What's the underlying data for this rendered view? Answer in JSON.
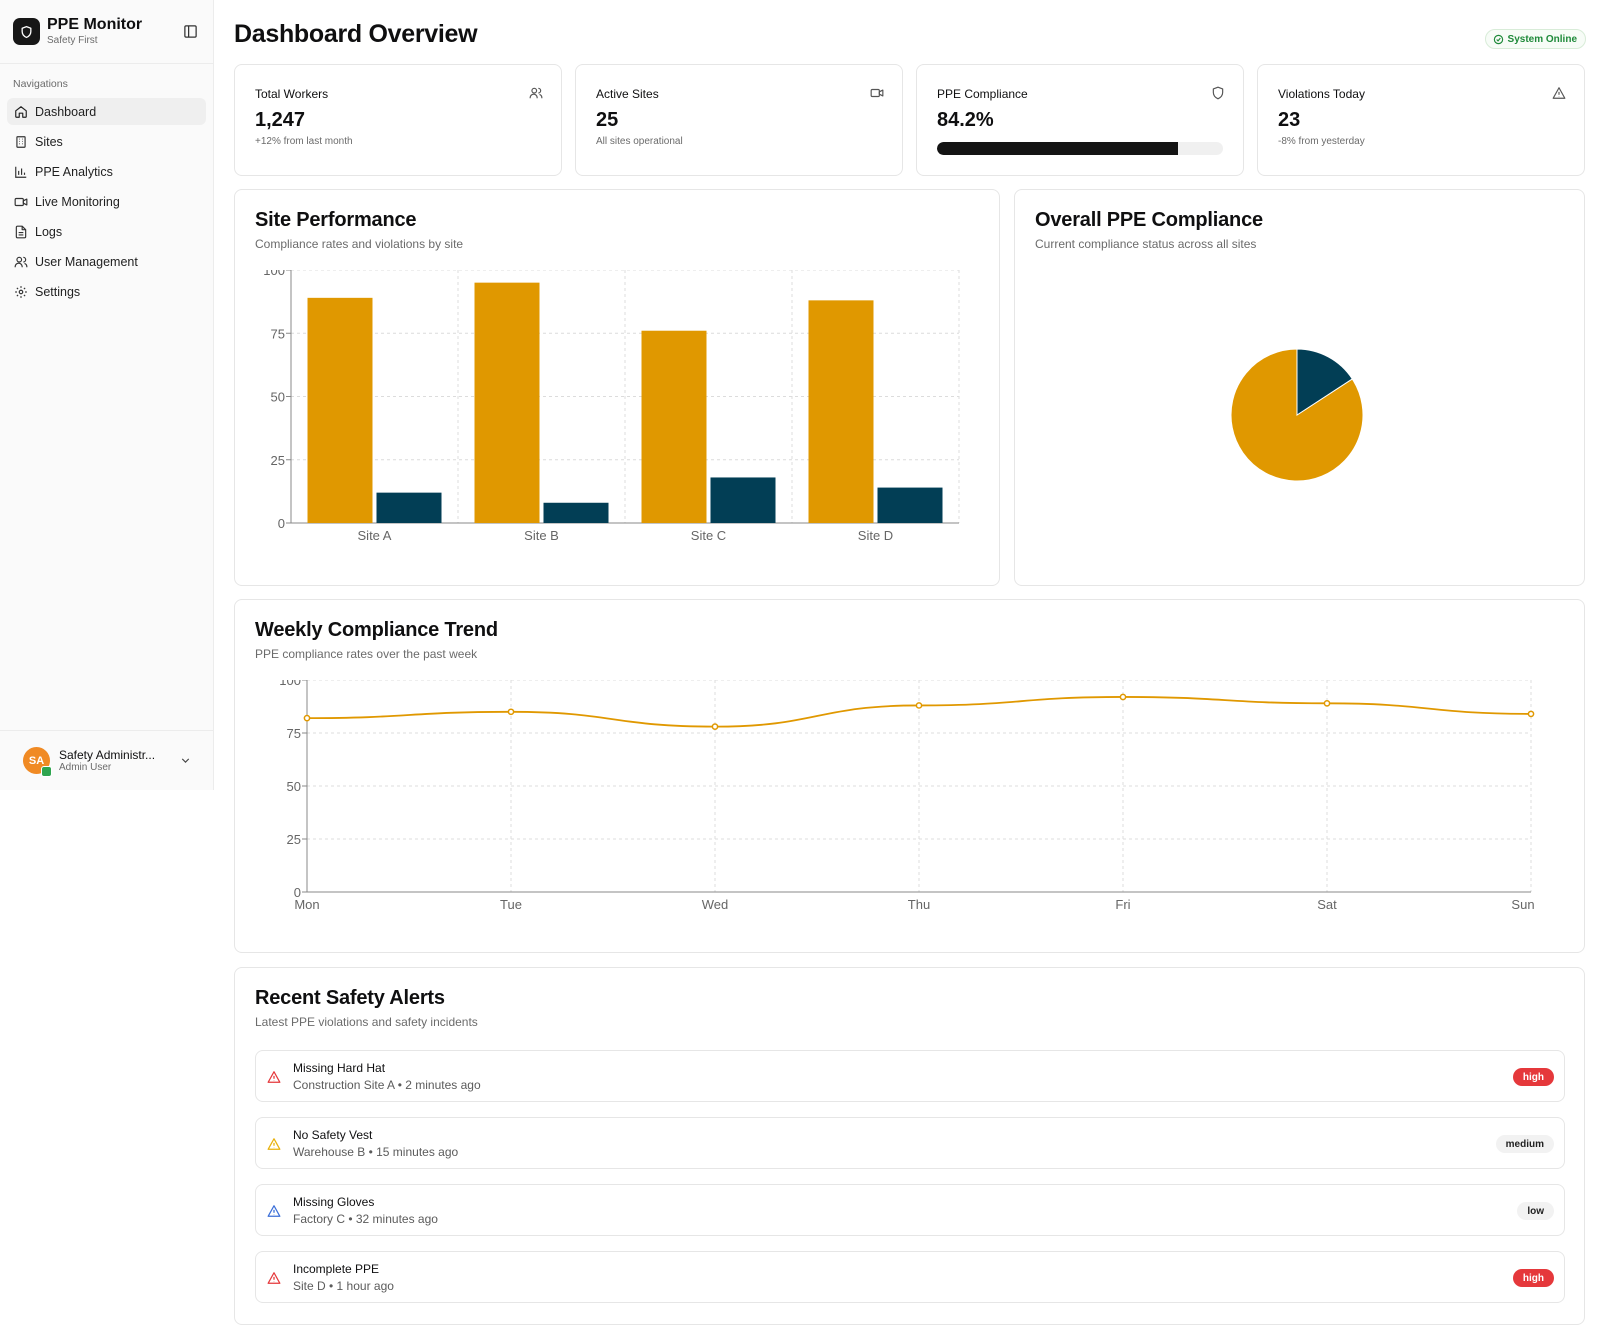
{
  "sidebar": {
    "brand_title": "PPE Monitor",
    "brand_subtitle": "Safety First",
    "nav_heading": "Navigations",
    "items": [
      {
        "label": "Dashboard",
        "icon": "home-icon"
      },
      {
        "label": "Sites",
        "icon": "building-icon"
      },
      {
        "label": "PPE Analytics",
        "icon": "bar-chart-icon"
      },
      {
        "label": "Live Monitoring",
        "icon": "video-icon"
      },
      {
        "label": "Logs",
        "icon": "file-text-icon"
      },
      {
        "label": "User Management",
        "icon": "users-icon"
      },
      {
        "label": "Settings",
        "icon": "gear-icon"
      }
    ],
    "user": {
      "initials": "SA",
      "name": "Safety Administr...",
      "role": "Admin User"
    }
  },
  "header": {
    "title": "Dashboard Overview",
    "status": "System Online"
  },
  "stats": [
    {
      "title": "Total Workers",
      "value": "1,247",
      "note": "+12% from last month",
      "icon": "users-icon"
    },
    {
      "title": "Active Sites",
      "value": "25",
      "note": "All sites operational",
      "icon": "video-icon"
    },
    {
      "title": "PPE Compliance",
      "value": "84.2%",
      "progress": 84.2,
      "icon": "shield-icon"
    },
    {
      "title": "Violations Today",
      "value": "23",
      "note": "-8% from yesterday",
      "icon": "warning-icon"
    }
  ],
  "site_performance": {
    "title": "Site Performance",
    "subtitle": "Compliance rates and violations by site"
  },
  "overall_compliance": {
    "title": "Overall PPE Compliance",
    "subtitle": "Current compliance status across all sites"
  },
  "weekly_trend": {
    "title": "Weekly Compliance Trend",
    "subtitle": "PPE compliance rates over the past week"
  },
  "alerts": {
    "title": "Recent Safety Alerts",
    "subtitle": "Latest PPE violations and safety incidents",
    "items": [
      {
        "title": "Missing Hard Hat",
        "meta": "Construction Site A • 2 minutes ago",
        "severity": "high",
        "color": "#e5383b"
      },
      {
        "title": "No Safety Vest",
        "meta": "Warehouse B • 15 minutes ago",
        "severity": "medium",
        "color": "#e8b10c"
      },
      {
        "title": "Missing Gloves",
        "meta": "Factory C • 32 minutes ago",
        "severity": "low",
        "color": "#3b6fd8"
      },
      {
        "title": "Incomplete PPE",
        "meta": "Site D • 1 hour ago",
        "severity": "high",
        "color": "#e5383b"
      }
    ]
  },
  "colors": {
    "accent": "#e09800",
    "dark": "#023e55",
    "danger": "#e5383b",
    "success": "#1f8a3a"
  },
  "chart_data": [
    {
      "type": "bar",
      "categories": [
        "Site A",
        "Site B",
        "Site C",
        "Site D"
      ],
      "series": [
        {
          "values": [
            89,
            95,
            76,
            88
          ]
        },
        {
          "values": [
            12,
            8,
            18,
            14
          ]
        }
      ],
      "ylim": [
        0,
        100
      ],
      "yticks": [
        0,
        25,
        50,
        75,
        100
      ],
      "grid": true
    },
    {
      "type": "pie",
      "values": [
        84.2,
        15.8
      ]
    },
    {
      "type": "line",
      "x": [
        "Mon",
        "Tue",
        "Wed",
        "Thu",
        "Fri",
        "Sat",
        "Sun"
      ],
      "series": [
        {
          "values": [
            82,
            85,
            78,
            88,
            92,
            89,
            84
          ]
        }
      ],
      "ylim": [
        0,
        100
      ],
      "yticks": [
        0,
        25,
        50,
        75,
        100
      ],
      "grid": true
    }
  ]
}
